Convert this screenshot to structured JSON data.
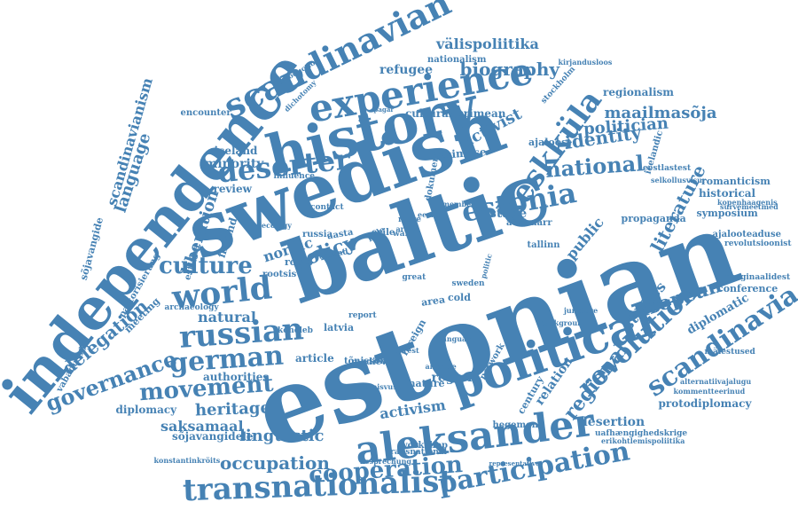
{
  "colors": {
    "word": "#4682b4",
    "background": "#ffffff"
  },
  "words": [
    "estonian",
    "baltic",
    "swedish",
    "independence",
    "history",
    "political",
    "aleksander",
    "experience",
    "scandinavian",
    "transnationalist",
    "keskküla",
    "estonia",
    "world",
    "deserter",
    "russian",
    "participation",
    "german",
    "cooperation",
    "revolution",
    "scandinavia",
    "movement",
    "culture",
    "policy",
    "national",
    "occupation",
    "regional",
    "governance",
    "european",
    "literature",
    "biography",
    "identity",
    "delegation",
    "heritage",
    "linguistic",
    "maailmasõja",
    "politician",
    "activist",
    "välispoliitika",
    "scandinavianism",
    "language",
    "liberation",
    "nordic",
    "activism",
    "natural",
    "region",
    "protodiplomacy",
    "desertion",
    "relation",
    "studies",
    "stage",
    "public",
    "diplomatic",
    "saksamaal",
    "minority",
    "refugee",
    "cultural",
    "crimean",
    "esimese",
    "ajaloost",
    "historical",
    "symposium",
    "regionalism",
    "romanticism",
    "conference",
    "iceland",
    "finland",
    "review",
    "nationalism",
    "century",
    "meeting",
    "article",
    "authorities",
    "latvia",
    "russia",
    "exile",
    "tallinn",
    "diplomacy",
    "hegemony",
    "nature",
    "workshop",
    "medieval",
    "war",
    "army",
    "cold",
    "area",
    "great",
    "foreign",
    "report",
    "network",
    "sweden",
    "propaganda",
    "eestlastest",
    "selkollusvisur",
    "revolutsioonist",
    "ajalooteaduse",
    "kopenhaagenis",
    "mälestused",
    "marginaalidest",
    "survemeetmed",
    "kommentteerinud",
    "alternatiivajalugu",
    "uafhængighedskrige",
    "erikohtlemispoliitika",
    "representative",
    "sõjavangidele",
    "sõjavangide",
    "konstantinkröits",
    "vabadussõja",
    "iseseisvuse",
    "introduction",
    "dichotomy",
    "encounter",
    "stockholm",
    "kirjandusloos",
    "icelandic",
    "estland",
    "pastorisierung",
    "ecology",
    "archaeology",
    "influence",
    "contact",
    "roots",
    "rootsis",
    "aasta",
    "aastad",
    "more",
    "eestis",
    "member",
    "austmarr",
    "background",
    "dokument",
    "pole",
    "köneleb",
    "tõnisson",
    "besprechung",
    "transnational",
    "juncture",
    "interest",
    "vanguard",
    "alliance",
    "pagar",
    "politic"
  ]
}
